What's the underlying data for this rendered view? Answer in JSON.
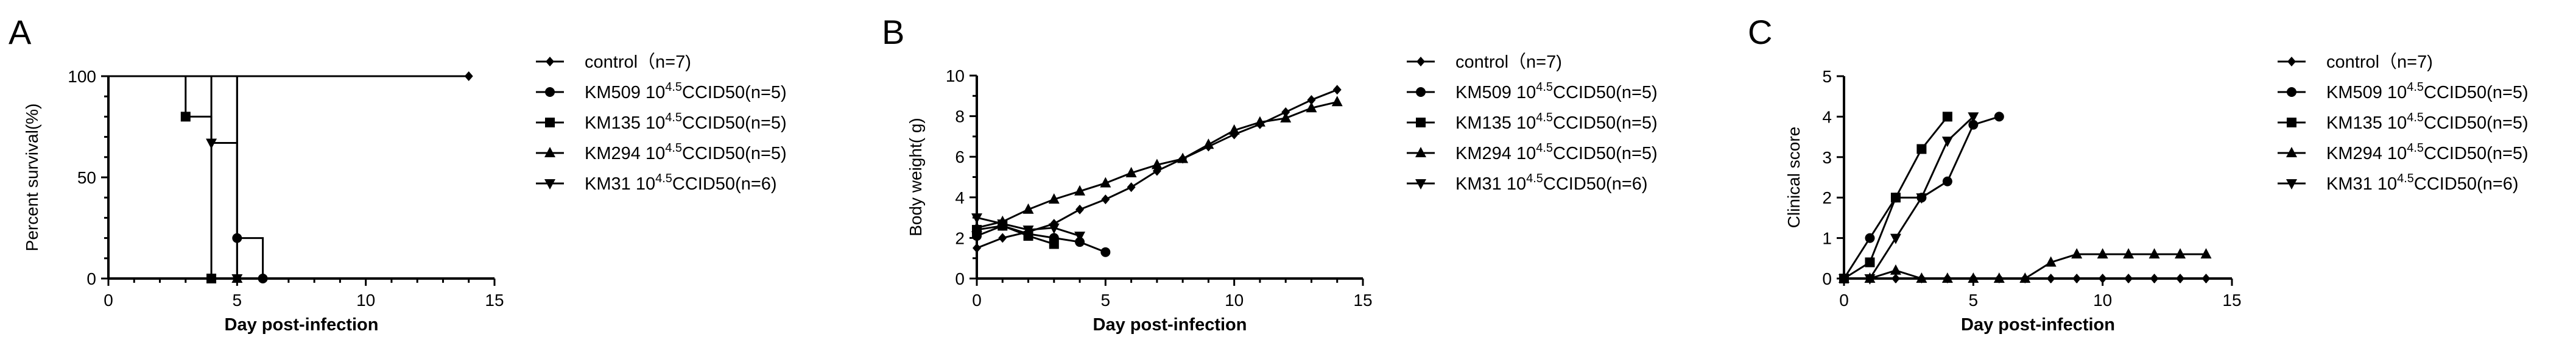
{
  "figure": {
    "panel_labels": [
      "A",
      "B",
      "C"
    ],
    "legend_entries": [
      {
        "pre": "control（n=7)",
        "sup": "",
        "post": "",
        "marker": "diamond"
      },
      {
        "pre": "KM509 10",
        "sup": "4.5",
        "post": "CCID50(n=5)",
        "marker": "circle"
      },
      {
        "pre": "KM135 10",
        "sup": "4.5",
        "post": "CCID50(n=5)",
        "marker": "square"
      },
      {
        "pre": "KM294 10",
        "sup": "4.5",
        "post": "CCID50(n=5)",
        "marker": "triangle-up"
      },
      {
        "pre": "KM31 10",
        "sup": "4.5",
        "post": "CCID50(n=6)",
        "marker": "triangle-down"
      }
    ]
  },
  "chart_data": [
    {
      "panel": "A",
      "type": "line",
      "step": true,
      "xlabel": "Day post-infection",
      "ylabel": "Percent survival(%)",
      "xlim": [
        0,
        15
      ],
      "ylim": [
        0,
        100
      ],
      "xticks": [
        0,
        5,
        10,
        15
      ],
      "yticks": [
        0,
        50,
        100
      ],
      "grid": false,
      "legend_position": "right",
      "series": [
        {
          "name": "control（n=7)",
          "marker": "diamond",
          "x": [
            0,
            14
          ],
          "y": [
            100,
            100
          ]
        },
        {
          "name": "KM509 10^4.5CCID50(n=5)",
          "marker": "circle",
          "x": [
            0,
            5,
            6
          ],
          "y": [
            100,
            20,
            0
          ]
        },
        {
          "name": "KM135 10^4.5CCID50(n=5)",
          "marker": "square",
          "x": [
            0,
            3,
            4
          ],
          "y": [
            100,
            80,
            0
          ]
        },
        {
          "name": "KM294 10^4.5CCID50(n=5)",
          "marker": "triangle-up",
          "x": [
            0,
            5
          ],
          "y": [
            100,
            0
          ]
        },
        {
          "name": "KM31 10^4.5CCID50(n=6)",
          "marker": "triangle-down",
          "x": [
            0,
            4,
            5
          ],
          "y": [
            100,
            67,
            0
          ]
        }
      ]
    },
    {
      "panel": "B",
      "type": "line",
      "step": false,
      "xlabel": "Day post-infection",
      "ylabel": "Body weight( g)",
      "xlim": [
        0,
        15
      ],
      "ylim": [
        0,
        10
      ],
      "xticks": [
        0,
        5,
        10,
        15
      ],
      "yticks": [
        0,
        2,
        4,
        6,
        8,
        10
      ],
      "grid": false,
      "legend_position": "right",
      "series": [
        {
          "name": "control（n=7)",
          "marker": "diamond",
          "x": [
            0,
            1,
            2,
            3,
            4,
            5,
            6,
            7,
            8,
            9,
            10,
            11,
            12,
            13,
            14
          ],
          "y": [
            1.5,
            2.0,
            2.3,
            2.7,
            3.4,
            3.9,
            4.5,
            5.3,
            5.9,
            6.5,
            7.1,
            7.6,
            8.2,
            8.8,
            9.3
          ]
        },
        {
          "name": "KM509 10^4.5CCID50(n=5)",
          "marker": "circle",
          "x": [
            0,
            1,
            2,
            3,
            4,
            5
          ],
          "y": [
            2.1,
            2.6,
            2.2,
            2.0,
            1.8,
            1.3
          ]
        },
        {
          "name": "KM135 10^4.5CCID50(n=5)",
          "marker": "square",
          "x": [
            0,
            1,
            2,
            3
          ],
          "y": [
            2.4,
            2.6,
            2.1,
            1.7
          ]
        },
        {
          "name": "KM294 10^4.5CCID50(n=5)",
          "marker": "triangle-up",
          "x": [
            0,
            1,
            2,
            3,
            4,
            5,
            6,
            7,
            8,
            9,
            10,
            11,
            12,
            13,
            14
          ],
          "y": [
            2.5,
            2.8,
            3.4,
            3.9,
            4.3,
            4.7,
            5.2,
            5.6,
            5.9,
            6.6,
            7.3,
            7.7,
            7.9,
            8.4,
            8.7
          ]
        },
        {
          "name": "KM31 10^4.5CCID50(n=6)",
          "marker": "triangle-down",
          "x": [
            0,
            1,
            2,
            3,
            4
          ],
          "y": [
            3.0,
            2.7,
            2.4,
            2.5,
            2.1
          ]
        }
      ]
    },
    {
      "panel": "C",
      "type": "line",
      "step": false,
      "xlabel": "Day post-infection",
      "ylabel": "Clinical score",
      "xlim": [
        0,
        15
      ],
      "ylim": [
        0,
        5
      ],
      "xticks": [
        0,
        5,
        10,
        15
      ],
      "yticks": [
        0,
        1,
        2,
        3,
        4,
        5
      ],
      "grid": false,
      "legend_position": "right",
      "series": [
        {
          "name": "control（n=7)",
          "marker": "diamond",
          "x": [
            0,
            1,
            2,
            3,
            4,
            5,
            6,
            7,
            8,
            9,
            10,
            11,
            12,
            13,
            14
          ],
          "y": [
            0,
            0,
            0,
            0,
            0,
            0,
            0,
            0,
            0,
            0,
            0,
            0,
            0,
            0,
            0
          ]
        },
        {
          "name": "KM509 10^4.5CCID50(n=5)",
          "marker": "circle",
          "x": [
            0,
            1,
            2,
            3,
            4,
            5,
            6
          ],
          "y": [
            0,
            1,
            2,
            2,
            2.4,
            3.8,
            4
          ]
        },
        {
          "name": "KM135 10^4.5CCID50(n=5)",
          "marker": "square",
          "x": [
            0,
            1,
            2,
            3,
            4
          ],
          "y": [
            0,
            0.4,
            2,
            3.2,
            4
          ]
        },
        {
          "name": "KM294 10^4.5CCID50(n=5)",
          "marker": "triangle-up",
          "x": [
            0,
            1,
            2,
            3,
            4,
            5,
            6,
            7,
            8,
            9,
            10,
            11,
            12,
            13,
            14
          ],
          "y": [
            0,
            0,
            0.2,
            0,
            0,
            0,
            0,
            0,
            0.4,
            0.6,
            0.6,
            0.6,
            0.6,
            0.6,
            0.6
          ]
        },
        {
          "name": "KM31 10^4.5CCID50(n=6)",
          "marker": "triangle-down",
          "x": [
            0,
            1,
            2,
            3,
            4,
            5
          ],
          "y": [
            0,
            0,
            1,
            2,
            3.4,
            4
          ]
        }
      ]
    }
  ]
}
